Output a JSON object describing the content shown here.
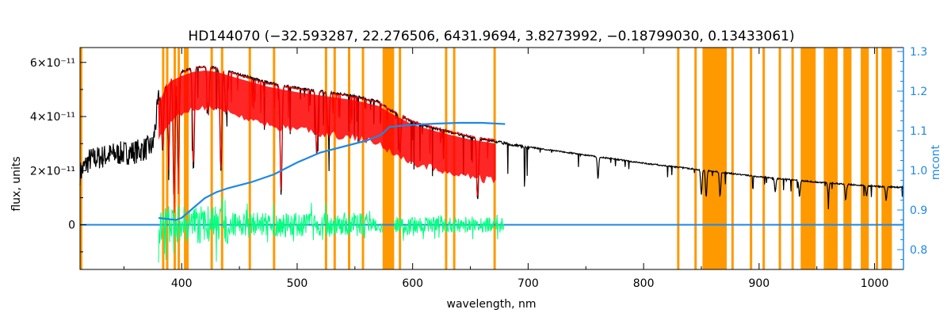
{
  "chart_data": {
    "type": "line",
    "title": "HD144070   (−32.593287, 22.276506, 6431.9694, 3.8273992, −0.18799030, 0.13433061)",
    "xlabel": "wavelength, nm",
    "ylabel": "flux, units",
    "y2label": "mcont",
    "xlim": [
      312,
      1025
    ],
    "ylim": [
      -1.65,
      6.55
    ],
    "ylim_units": "1e-11",
    "y2lim": [
      0.75,
      1.31
    ],
    "x_ticks": [
      "400",
      "500",
      "600",
      "700",
      "800",
      "900",
      "1000"
    ],
    "y_ticks": [
      "0",
      "2×10⁻¹¹",
      "4×10⁻¹¹",
      "6×10⁻¹¹"
    ],
    "y2_ticks": [
      "0.8",
      "0.9",
      "1.0",
      "1.1",
      "1.2",
      "1.3"
    ],
    "colors": {
      "observed": "#000000",
      "model": "#ff0000",
      "residual": "#00ff7f",
      "mcont": "#1e88e5",
      "masks": "#ff9900"
    },
    "observed_spectrum": {
      "x": [
        312,
        320,
        340,
        360,
        375,
        380,
        385,
        390,
        400,
        410,
        420,
        430,
        450,
        475,
        500,
        525,
        550,
        570,
        580,
        600,
        625,
        650,
        675,
        700,
        750,
        800,
        850,
        900,
        950,
        1000,
        1025
      ],
      "y": [
        1.9,
        2.4,
        2.6,
        2.7,
        2.9,
        4.6,
        5.1,
        5.5,
        5.7,
        5.85,
        5.9,
        5.85,
        5.6,
        5.3,
        5.1,
        4.95,
        4.8,
        4.6,
        4.3,
        3.85,
        3.55,
        3.3,
        3.1,
        2.9,
        2.6,
        2.3,
        2.05,
        1.8,
        1.6,
        1.45,
        1.4
      ]
    },
    "model_spectrum": {
      "x": [
        380,
        385,
        390,
        400,
        410,
        420,
        430,
        450,
        475,
        500,
        525,
        550,
        570,
        580,
        600,
        625,
        650,
        672
      ],
      "y": [
        4.6,
        5.1,
        5.45,
        5.65,
        5.8,
        5.85,
        5.8,
        5.55,
        5.25,
        5.05,
        4.9,
        4.75,
        4.55,
        4.3,
        3.85,
        3.55,
        3.3,
        3.15
      ]
    },
    "absorption_lines": [
      {
        "x": 383.5,
        "depth": 2.2
      },
      {
        "x": 388.9,
        "depth": 2.6
      },
      {
        "x": 393.4,
        "depth": 4.5
      },
      {
        "x": 397.0,
        "depth": 3.6
      },
      {
        "x": 410.2,
        "depth": 3.8
      },
      {
        "x": 423,
        "depth": 1.8
      },
      {
        "x": 434.0,
        "depth": 3.8
      },
      {
        "x": 438.4,
        "depth": 1.6
      },
      {
        "x": 486.1,
        "depth": 4.1
      },
      {
        "x": 517.0,
        "depth": 2.4
      },
      {
        "x": 527,
        "depth": 1.6
      },
      {
        "x": 589.0,
        "depth": 1.4
      },
      {
        "x": 656.3,
        "depth": 2.3
      },
      {
        "x": 760.5,
        "depth": 0.8
      },
      {
        "x": 850,
        "depth": 0.9
      },
      {
        "x": 854.2,
        "depth": 1.0
      },
      {
        "x": 866.2,
        "depth": 0.9
      },
      {
        "x": 914,
        "depth": 0.5
      },
      {
        "x": 935,
        "depth": 0.6
      },
      {
        "x": 960,
        "depth": 0.5
      },
      {
        "x": 975,
        "depth": 0.6
      },
      {
        "x": 993,
        "depth": 0.4
      },
      {
        "x": 1010,
        "depth": 0.5
      }
    ],
    "residual_extent": [
      [
        380,
        574
      ],
      [
        584,
        679
      ]
    ],
    "mcont_curve": {
      "x": [
        380,
        395,
        400,
        410,
        420,
        430,
        440,
        460,
        480,
        500,
        520,
        540,
        560,
        573,
        580,
        600,
        620,
        640,
        660,
        680
      ],
      "y": [
        0.88,
        0.875,
        0.88,
        0.905,
        0.93,
        0.945,
        0.955,
        0.97,
        0.99,
        1.02,
        1.045,
        1.06,
        1.075,
        1.09,
        1.11,
        1.115,
        1.118,
        1.12,
        1.12,
        1.117
      ]
    },
    "masks": {
      "lines": [
        313,
        384,
        387.5,
        394,
        397.5,
        403,
        405,
        426,
        435,
        459,
        480,
        525,
        532.5,
        545,
        557,
        589,
        629,
        636,
        671,
        830,
        845,
        877,
        893,
        904,
        918,
        929,
        957,
        967,
        1002
      ],
      "bands": [
        [
          574,
          584
        ],
        [
          851,
          872
        ],
        [
          936,
          949
        ],
        [
          958,
          966
        ],
        [
          973,
          980
        ],
        [
          988,
          995
        ],
        [
          1006,
          1015
        ]
      ]
    }
  }
}
